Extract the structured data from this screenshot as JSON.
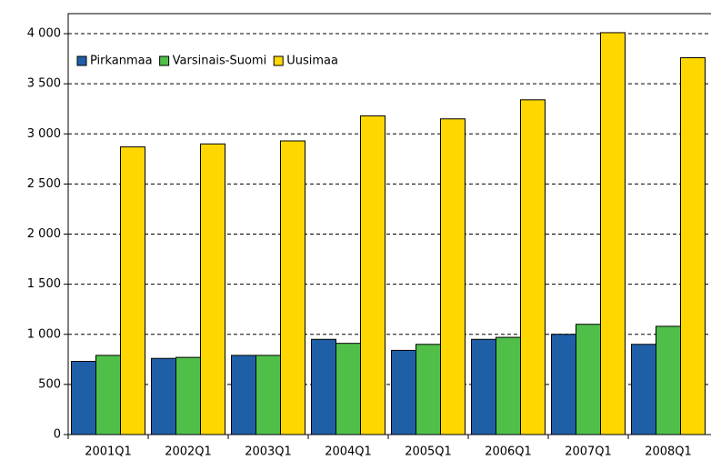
{
  "chart_data": {
    "type": "bar",
    "categories": [
      "2001Q1",
      "2002Q1",
      "2003Q1",
      "2004Q1",
      "2005Q1",
      "2006Q1",
      "2007Q1",
      "2008Q1"
    ],
    "series": [
      {
        "name": "Pirkanmaa",
        "color": "#1f5fa8",
        "values": [
          730,
          760,
          790,
          950,
          840,
          950,
          1000,
          900
        ]
      },
      {
        "name": "Varsinais-Suomi",
        "color": "#50bf4a",
        "values": [
          790,
          770,
          790,
          910,
          900,
          970,
          1100,
          1080
        ]
      },
      {
        "name": "Uusimaa",
        "color": "#ffd700",
        "values": [
          2870,
          2900,
          2930,
          3180,
          3150,
          3340,
          4010,
          3760
        ]
      }
    ],
    "ylim": [
      0,
      4200
    ],
    "yticks": [
      0,
      500,
      {
        "value": 1000,
        "label": "1 000"
      },
      {
        "value": 1500,
        "label": "1 500"
      },
      {
        "value": 2000,
        "label": "2 000"
      },
      {
        "value": 2500,
        "label": "2 500"
      },
      {
        "value": 3000,
        "label": "3 000"
      },
      {
        "value": 3500,
        "label": "3 500"
      },
      {
        "value": 4000,
        "label": "4 000"
      }
    ],
    "grid": true,
    "legend": "top-left"
  }
}
